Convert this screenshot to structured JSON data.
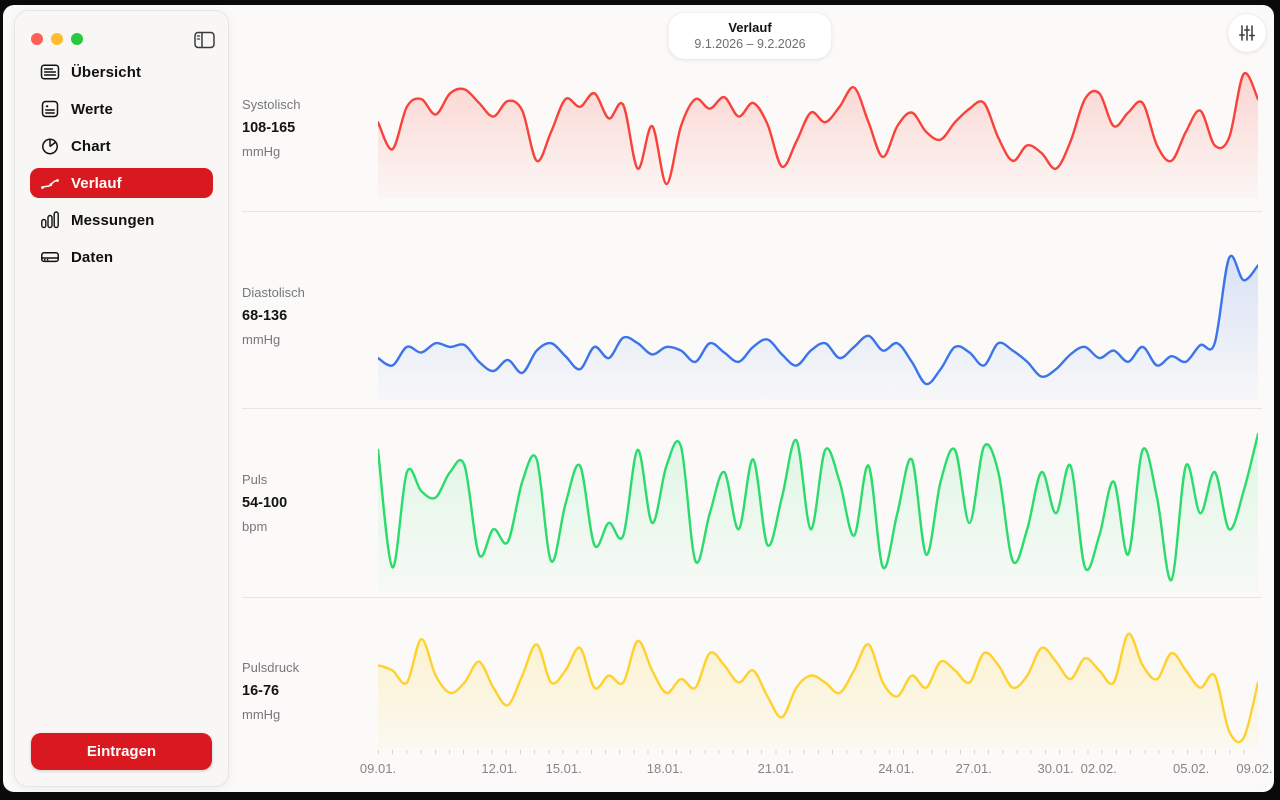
{
  "window": {
    "header": {
      "title": "Verlauf",
      "date_range": "9.1.2026 – 9.2.2026"
    }
  },
  "sidebar": {
    "items": [
      {
        "label": "Übersicht",
        "icon": "list-rectangle-icon",
        "selected": false
      },
      {
        "label": "Werte",
        "icon": "heart-text-square-icon",
        "selected": false
      },
      {
        "label": "Chart",
        "icon": "pie-chart-icon",
        "selected": false
      },
      {
        "label": "Verlauf",
        "icon": "line-chart-icon",
        "selected": true
      },
      {
        "label": "Messungen",
        "icon": "bar-chart-icon",
        "selected": false
      },
      {
        "label": "Daten",
        "icon": "external-drive-icon",
        "selected": false
      }
    ],
    "action_button": "Eintragen"
  },
  "toolbar": {
    "filter_icon": "vertical-sliders-icon"
  },
  "colors": {
    "accent_red": "#D9191F",
    "systolic": "#F8423A",
    "diastolic": "#3C74E9",
    "pulse": "#2BDC6C",
    "pulse_pressure": "#FFD12E",
    "traffic_close": "#FF5F57",
    "traffic_min": "#FEBC2E",
    "traffic_zoom": "#28C840"
  },
  "chart_data": [
    {
      "type": "area",
      "name": "Systolisch",
      "range": "108-165",
      "unit": "mmHg",
      "color": "#F8423A",
      "ymin": 108,
      "ymax": 165,
      "values": [
        140,
        126,
        148,
        152,
        144,
        155,
        157,
        150,
        143,
        151,
        146,
        120,
        135,
        152,
        148,
        155,
        142,
        149,
        116,
        138,
        108,
        138,
        152,
        147,
        153,
        143,
        150,
        139,
        117,
        130,
        145,
        140,
        148,
        158,
        140,
        122,
        138,
        145,
        135,
        131,
        140,
        147,
        150,
        132,
        120,
        128,
        124,
        116,
        130,
        152,
        155,
        138,
        145,
        150,
        128,
        120,
        135,
        146,
        128,
        132,
        165,
        152
      ]
    },
    {
      "type": "area",
      "name": "Diastolisch",
      "range": "68-136",
      "unit": "mmHg",
      "color": "#3C74E9",
      "ymin": 68,
      "ymax": 136,
      "values": [
        82,
        78,
        88,
        85,
        90,
        88,
        89,
        80,
        75,
        81,
        74,
        86,
        90,
        83,
        76,
        88,
        82,
        93,
        90,
        84,
        88,
        86,
        80,
        90,
        85,
        80,
        88,
        92,
        84,
        78,
        86,
        90,
        82,
        88,
        94,
        86,
        90,
        80,
        68,
        76,
        88,
        85,
        78,
        90,
        86,
        80,
        72,
        76,
        84,
        88,
        82,
        86,
        80,
        88,
        78,
        83,
        80,
        89,
        90,
        136,
        124,
        132
      ]
    },
    {
      "type": "area",
      "name": "Puls",
      "range": "54-100",
      "unit": "bpm",
      "color": "#2BDC6C",
      "ymin": 54,
      "ymax": 100,
      "values": [
        95,
        58,
        88,
        82,
        80,
        88,
        90,
        62,
        70,
        66,
        85,
        92,
        60,
        78,
        90,
        65,
        72,
        68,
        95,
        72,
        90,
        96,
        60,
        75,
        88,
        70,
        92,
        65,
        80,
        98,
        70,
        95,
        85,
        68,
        90,
        58,
        75,
        92,
        62,
        85,
        95,
        72,
        96,
        88,
        60,
        70,
        88,
        75,
        90,
        58,
        68,
        85,
        62,
        95,
        80,
        54,
        90,
        75,
        88,
        70,
        82,
        100
      ]
    },
    {
      "type": "area",
      "name": "Pulsdruck",
      "range": "16-76",
      "unit": "mmHg",
      "color": "#FFD12E",
      "ymin": 16,
      "ymax": 76,
      "values": [
        58,
        55,
        48,
        73,
        52,
        42,
        48,
        60,
        45,
        35,
        52,
        70,
        48,
        55,
        68,
        45,
        52,
        48,
        72,
        55,
        42,
        50,
        45,
        65,
        58,
        48,
        55,
        40,
        28,
        45,
        52,
        48,
        42,
        55,
        70,
        48,
        40,
        52,
        45,
        60,
        55,
        48,
        65,
        58,
        45,
        52,
        68,
        60,
        50,
        62,
        55,
        48,
        76,
        58,
        50,
        65,
        55,
        45,
        52,
        20,
        16,
        48
      ]
    }
  ],
  "x_axis": {
    "labels": [
      {
        "text": "09.01.",
        "pos": 0
      },
      {
        "text": "12.01.",
        "pos": 13.8
      },
      {
        "text": "15.01.",
        "pos": 21.1
      },
      {
        "text": "18.01.",
        "pos": 32.6
      },
      {
        "text": "21.01.",
        "pos": 45.2
      },
      {
        "text": "24.01.",
        "pos": 58.9
      },
      {
        "text": "27.01.",
        "pos": 67.7
      },
      {
        "text": "30.01.",
        "pos": 77.0
      },
      {
        "text": "02.02.",
        "pos": 81.9
      },
      {
        "text": "05.02.",
        "pos": 92.4
      },
      {
        "text": "09.02.",
        "pos": 99.6
      }
    ]
  }
}
